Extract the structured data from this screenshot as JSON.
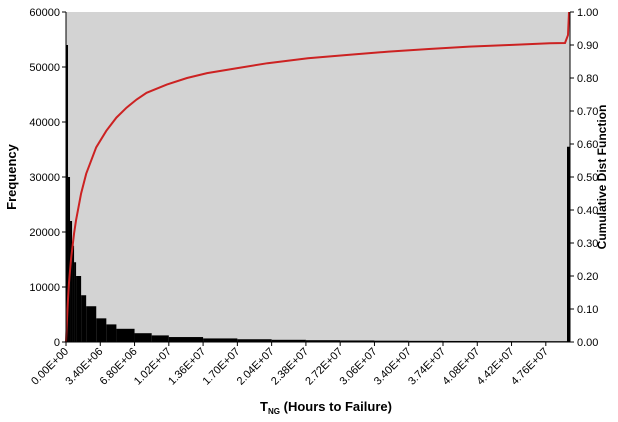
{
  "chart_data": {
    "type": "histogram",
    "xlabel_main": "T",
    "xlabel_sub": "NG",
    "xlabel_rest": " (Hours to Failure)",
    "ylabel_left": "Frequency",
    "ylabel_right": "Cumulative Dist Function",
    "x_tick_labels": [
      "0.00E+00",
      "3.40E+06",
      "6.80E+06",
      "1.02E+07",
      "1.36E+07",
      "1.70E+07",
      "2.04E+07",
      "2.38E+07",
      "2.72E+07",
      "3.06E+07",
      "3.40E+07",
      "3.74E+07",
      "4.08E+07",
      "4.42E+07",
      "4.76E+07"
    ],
    "x_tick_values": [
      0,
      3400000,
      6800000,
      10200000,
      13600000,
      17000000,
      20400000,
      23800000,
      27200000,
      30600000,
      34000000,
      37400000,
      40800000,
      44200000,
      47600000
    ],
    "xlim": [
      0,
      50000000
    ],
    "y_left_ticks": [
      "0",
      "10000",
      "20000",
      "30000",
      "40000",
      "50000",
      "60000"
    ],
    "y_left_values": [
      0,
      10000,
      20000,
      30000,
      40000,
      50000,
      60000
    ],
    "ylim_left": [
      0,
      60000
    ],
    "y_right_ticks": [
      "0.00",
      "0.10",
      "0.20",
      "0.30",
      "0.40",
      "0.50",
      "0.60",
      "0.70",
      "0.80",
      "0.90",
      "1.00"
    ],
    "y_right_values": [
      0,
      0.1,
      0.2,
      0.3,
      0.4,
      0.5,
      0.6,
      0.7,
      0.8,
      0.9,
      1.0
    ],
    "ylim_right": [
      0,
      1
    ],
    "histogram": {
      "series_color": "#000000",
      "x": [
        0,
        200000,
        400000,
        600000,
        800000,
        1000000,
        1500000,
        2000000,
        3000000,
        4000000,
        5000000,
        6800000,
        8500000,
        10200000,
        13600000,
        17000000,
        20400000,
        23800000,
        27200000,
        30600000,
        34000000,
        37400000,
        40800000,
        44200000,
        47600000,
        49800000
      ],
      "values": [
        54000,
        30000,
        22000,
        17500,
        14500,
        12000,
        8500,
        6500,
        4300,
        3200,
        2400,
        1600,
        1200,
        900,
        650,
        500,
        400,
        330,
        280,
        240,
        210,
        190,
        170,
        160,
        150,
        35500
      ]
    },
    "cdf": {
      "series_color": "#cc2222",
      "x": [
        0,
        100000,
        200000,
        300000,
        500000,
        800000,
        1000000,
        1500000,
        2000000,
        3000000,
        4000000,
        5000000,
        6000000,
        7000000,
        8000000,
        10000000,
        12000000,
        14000000,
        17000000,
        20000000,
        24000000,
        28000000,
        32000000,
        36000000,
        40000000,
        44000000,
        48000000,
        49500000,
        49800000,
        49900000
      ],
      "values": [
        0.0,
        0.07,
        0.13,
        0.18,
        0.25,
        0.33,
        0.37,
        0.45,
        0.51,
        0.59,
        0.64,
        0.68,
        0.71,
        0.735,
        0.755,
        0.78,
        0.8,
        0.815,
        0.83,
        0.845,
        0.86,
        0.87,
        0.88,
        0.888,
        0.895,
        0.9,
        0.905,
        0.906,
        0.93,
        1.0
      ]
    },
    "plot_background": "#d3d3d3",
    "grid": false
  }
}
